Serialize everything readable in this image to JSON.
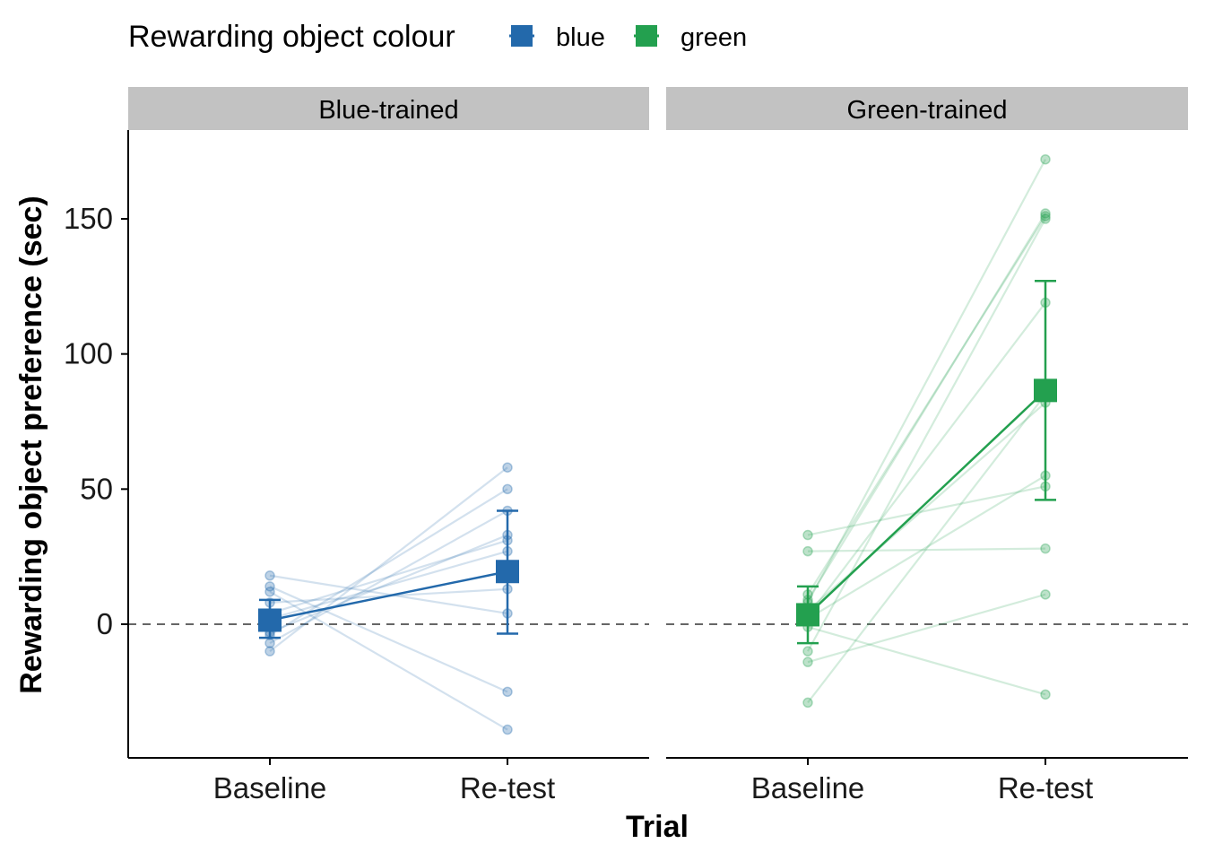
{
  "chart_data": {
    "type": "line",
    "legend": {
      "title": "Rewarding object colour",
      "position": "top-left",
      "entries": [
        {
          "label": "blue",
          "color": "#2369ab"
        },
        {
          "label": "green",
          "color": "#23a04f"
        }
      ]
    },
    "xlabel": "Trial",
    "ylabel": "Rewarding object preference (sec)",
    "categories": [
      "Baseline",
      "Re-test"
    ],
    "ylim": [
      -50,
      185
    ],
    "yticks": [
      0,
      50,
      100,
      150
    ],
    "reference_line": 0,
    "panels": [
      {
        "title": "Blue-trained",
        "series_color": "blue",
        "color": "#2369ab",
        "mean": [
          1.5,
          19.5
        ],
        "error": [
          [
            -5,
            9
          ],
          [
            -3.5,
            42
          ]
        ],
        "individuals": [
          [
            18,
            4
          ],
          [
            14,
            -25
          ],
          [
            12,
            -39
          ],
          [
            8,
            13
          ],
          [
            4,
            31
          ],
          [
            2,
            27
          ],
          [
            -3,
            33
          ],
          [
            -4,
            50
          ],
          [
            -7,
            42
          ],
          [
            -10,
            58
          ]
        ]
      },
      {
        "title": "Green-trained",
        "series_color": "green",
        "color": "#23a04f",
        "mean": [
          3.5,
          86.5
        ],
        "error": [
          [
            -7,
            14
          ],
          [
            46,
            127
          ]
        ],
        "individuals": [
          [
            33,
            51
          ],
          [
            27,
            28
          ],
          [
            11,
            151
          ],
          [
            9,
            152
          ],
          [
            8,
            172
          ],
          [
            5,
            82
          ],
          [
            3,
            119
          ],
          [
            2,
            55
          ],
          [
            -1,
            -26
          ],
          [
            -10,
            150
          ],
          [
            -14,
            11
          ],
          [
            -29,
            85
          ]
        ]
      }
    ]
  }
}
